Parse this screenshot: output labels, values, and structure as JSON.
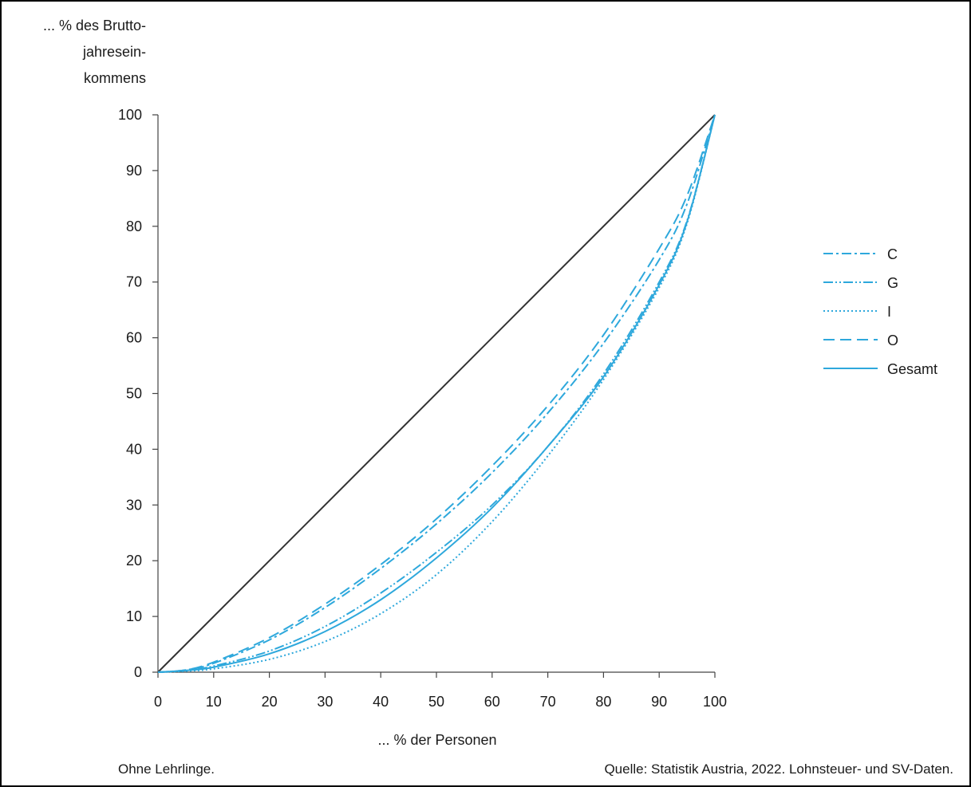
{
  "chart_data": {
    "type": "line",
    "ylabel": [
      "... % des Brutto-",
      "jahresein-",
      "kommens"
    ],
    "xlabel": "... % der Personen",
    "xlim": [
      0,
      100
    ],
    "ylim": [
      0,
      100
    ],
    "x_ticks": [
      "0",
      "10",
      "20",
      "30",
      "40",
      "50",
      "60",
      "70",
      "80",
      "90",
      "100"
    ],
    "y_ticks": [
      "0",
      "10",
      "20",
      "30",
      "40",
      "50",
      "60",
      "70",
      "80",
      "90",
      "100"
    ],
    "grid": false,
    "legend_position": "right",
    "line_color": "#2ea8dc",
    "equality_line_color": "#333333",
    "x": [
      0,
      5,
      10,
      20,
      30,
      40,
      50,
      60,
      70,
      80,
      90,
      95,
      100
    ],
    "series": [
      {
        "name": "C",
        "style": "dash-dot",
        "values": [
          0,
          0.4,
          1.6,
          5.8,
          11.6,
          18.6,
          26.6,
          35.8,
          46.5,
          59.0,
          74.0,
          84.0,
          100
        ]
      },
      {
        "name": "G",
        "style": "dash-dot-dot",
        "values": [
          0,
          0.3,
          1.1,
          3.8,
          8.2,
          14.2,
          21.5,
          30.0,
          40.5,
          53.5,
          70.0,
          81.0,
          100
        ]
      },
      {
        "name": "I",
        "style": "dotted",
        "values": [
          0,
          0.2,
          0.6,
          2.3,
          5.5,
          10.5,
          17.5,
          27.0,
          38.8,
          52.5,
          69.0,
          80.5,
          100
        ]
      },
      {
        "name": "O",
        "style": "dashed",
        "values": [
          0,
          0.4,
          1.8,
          6.2,
          12.2,
          19.3,
          27.5,
          37.0,
          47.8,
          60.5,
          76.0,
          85.5,
          100
        ]
      },
      {
        "name": "Gesamt",
        "style": "solid",
        "values": [
          0,
          0.3,
          0.9,
          3.3,
          7.3,
          13.0,
          20.5,
          29.5,
          40.5,
          53.0,
          69.5,
          80.8,
          100
        ]
      }
    ]
  },
  "footer": {
    "note_left": "Ohne Lehrlinge.",
    "source": "Quelle: Statistik Austria, 2022. Lohnsteuer- und SV-Daten."
  }
}
